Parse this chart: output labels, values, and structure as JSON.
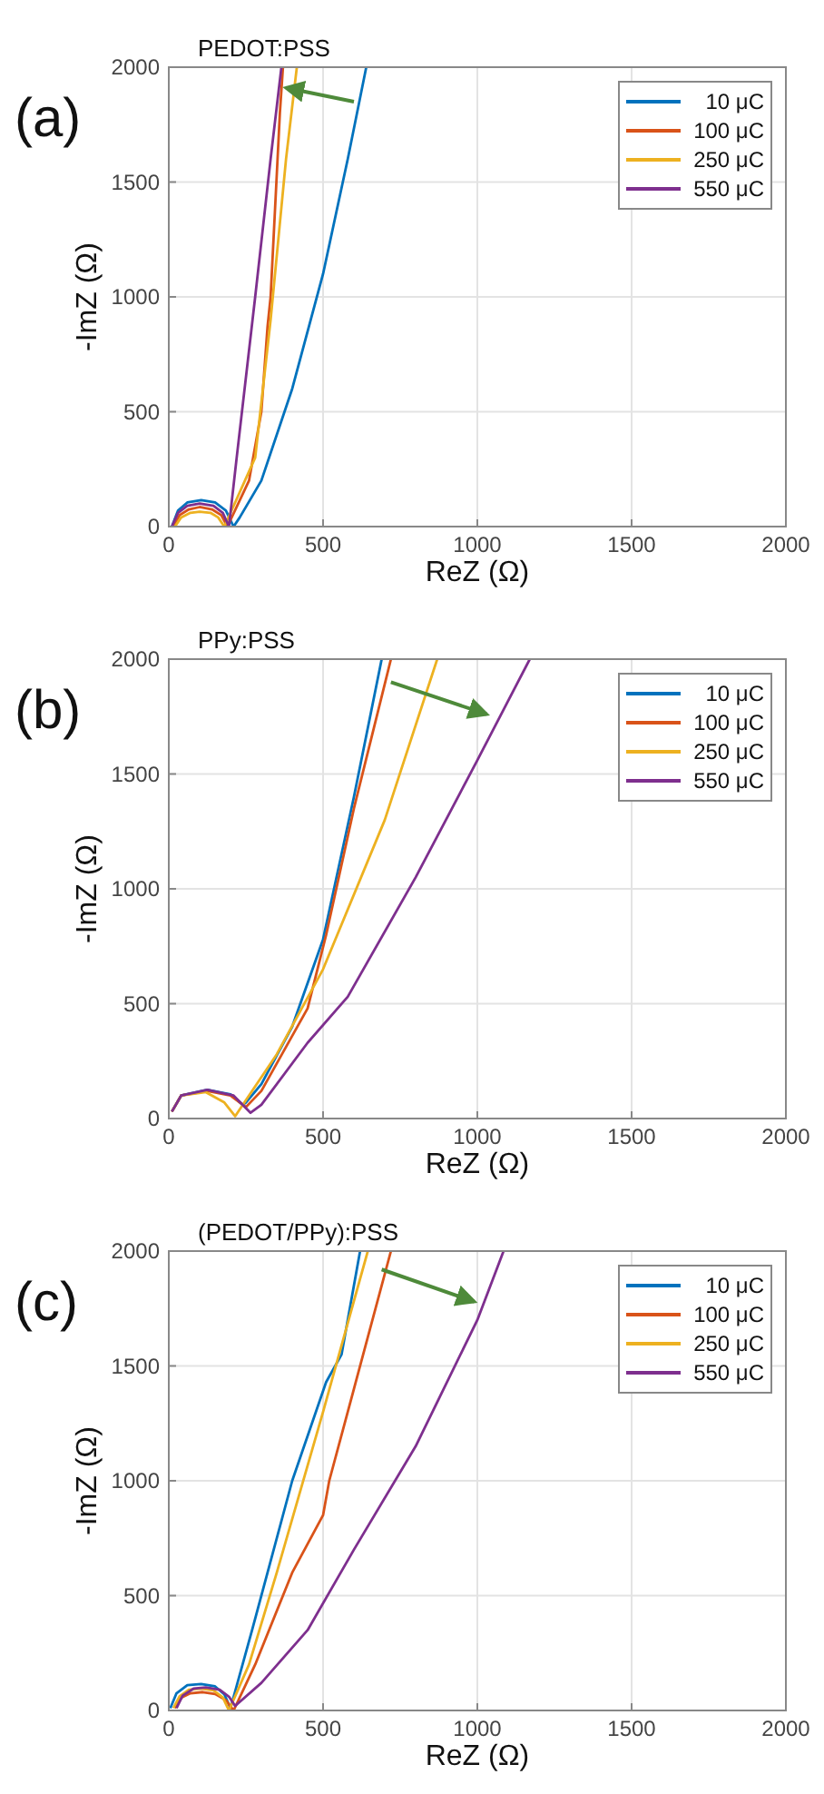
{
  "chart_data": [
    {
      "type": "line",
      "title": "PEDOT:PSS",
      "xlabel": "ReZ (Ω)",
      "ylabel": "-ImZ (Ω)",
      "annotations": [
        "(a)"
      ],
      "xlim": [
        0,
        2000
      ],
      "ylim": [
        0,
        2000
      ],
      "xticks": [
        0,
        500,
        1000,
        1500,
        2000
      ],
      "yticks": [
        0,
        500,
        1000,
        1500,
        2000
      ],
      "grid": true,
      "legend": "top right",
      "marker": "none",
      "line_style": "solid",
      "series": [
        {
          "name": "10 μC",
          "color": "#0072bd",
          "x": [
            10,
            30,
            60,
            105,
            150,
            185,
            210,
            230,
            300,
            400,
            500,
            580,
            640
          ],
          "values": [
            0,
            70,
            105,
            115,
            105,
            70,
            0,
            40,
            200,
            600,
            1100,
            1600,
            2000
          ]
        },
        {
          "name": "100 μC",
          "color": "#d95319",
          "x": [
            15,
            35,
            65,
            100,
            140,
            170,
            190,
            260,
            300,
            320,
            330,
            360,
            370
          ],
          "values": [
            0,
            50,
            75,
            85,
            75,
            50,
            0,
            200,
            500,
            870,
            1000,
            1800,
            2000
          ]
        },
        {
          "name": "250 μC",
          "color": "#edb120",
          "x": [
            20,
            40,
            70,
            100,
            135,
            160,
            180,
            280,
            330,
            380,
            415
          ],
          "values": [
            0,
            40,
            60,
            65,
            60,
            40,
            0,
            300,
            900,
            1600,
            2000
          ]
        },
        {
          "name": "550 μC",
          "color": "#7e2f8e",
          "x": [
            10,
            30,
            60,
            100,
            145,
            175,
            195,
            220,
            280,
            330,
            365
          ],
          "values": [
            0,
            60,
            90,
            100,
            90,
            60,
            0,
            300,
            1000,
            1600,
            2000
          ]
        }
      ]
    },
    {
      "type": "line",
      "title": "PPy:PSS",
      "xlabel": "ReZ (Ω)",
      "ylabel": "-ImZ (Ω)",
      "annotations": [
        "(b)"
      ],
      "xlim": [
        0,
        2000
      ],
      "ylim": [
        0,
        2000
      ],
      "xticks": [
        0,
        500,
        1000,
        1500,
        2000
      ],
      "yticks": [
        0,
        500,
        1000,
        1500,
        2000
      ],
      "grid": true,
      "legend": "top right",
      "marker": "none",
      "line_style": "solid",
      "series": [
        {
          "name": "10 μC",
          "color": "#0072bd",
          "x": [
            10,
            40,
            125,
            200,
            240,
            250,
            300,
            400,
            500,
            600,
            690
          ],
          "values": [
            30,
            100,
            125,
            105,
            60,
            70,
            150,
            400,
            780,
            1400,
            2000
          ]
        },
        {
          "name": "100 μC",
          "color": "#d95319",
          "x": [
            10,
            40,
            125,
            200,
            250,
            300,
            450,
            510,
            600,
            720
          ],
          "values": [
            30,
            100,
            120,
            100,
            50,
            120,
            480,
            800,
            1350,
            2000
          ]
        },
        {
          "name": "250 μC",
          "color": "#edb120",
          "x": [
            10,
            40,
            120,
            180,
            215,
            250,
            350,
            500,
            700,
            870
          ],
          "values": [
            30,
            100,
            115,
            70,
            10,
            80,
            280,
            650,
            1300,
            2000
          ]
        },
        {
          "name": "550 μC",
          "color": "#7e2f8e",
          "x": [
            10,
            40,
            125,
            210,
            265,
            300,
            450,
            580,
            800,
            1000,
            1170
          ],
          "values": [
            30,
            100,
            125,
            100,
            25,
            60,
            330,
            530,
            1050,
            1560,
            2000
          ]
        }
      ]
    },
    {
      "type": "line",
      "title": "(PEDOT/PPy):PSS",
      "xlabel": "ReZ (Ω)",
      "ylabel": "-ImZ (Ω)",
      "annotations": [
        "(c)"
      ],
      "xlim": [
        0,
        2000
      ],
      "ylim": [
        0,
        2000
      ],
      "xticks": [
        0,
        500,
        1000,
        1500,
        2000
      ],
      "yticks": [
        0,
        500,
        1000,
        1500,
        2000
      ],
      "grid": true,
      "legend": "top right",
      "marker": "none",
      "line_style": "solid",
      "series": [
        {
          "name": "10 μC",
          "color": "#0072bd",
          "x": [
            5,
            25,
            60,
            105,
            150,
            180,
            200,
            270,
            400,
            510,
            560,
            620
          ],
          "values": [
            10,
            75,
            110,
            115,
            105,
            70,
            10,
            350,
            1000,
            1430,
            1550,
            2000
          ]
        },
        {
          "name": "100 μC",
          "color": "#d95319",
          "x": [
            20,
            40,
            70,
            110,
            150,
            185,
            210,
            280,
            400,
            500,
            520,
            600,
            720
          ],
          "values": [
            10,
            55,
            75,
            80,
            72,
            45,
            0,
            200,
            600,
            850,
            1000,
            1400,
            2000
          ]
        },
        {
          "name": "250 μC",
          "color": "#edb120",
          "x": [
            15,
            35,
            65,
            105,
            145,
            175,
            195,
            260,
            350,
            500,
            645
          ],
          "values": [
            10,
            62,
            90,
            95,
            87,
            57,
            0,
            200,
            600,
            1300,
            2000
          ]
        },
        {
          "name": "550 μC",
          "color": "#7e2f8e",
          "x": [
            25,
            45,
            80,
            120,
            165,
            195,
            215,
            300,
            450,
            600,
            800,
            1000,
            1085
          ],
          "values": [
            10,
            65,
            95,
            100,
            90,
            60,
            20,
            120,
            350,
            700,
            1150,
            1700,
            2000
          ]
        }
      ]
    }
  ]
}
